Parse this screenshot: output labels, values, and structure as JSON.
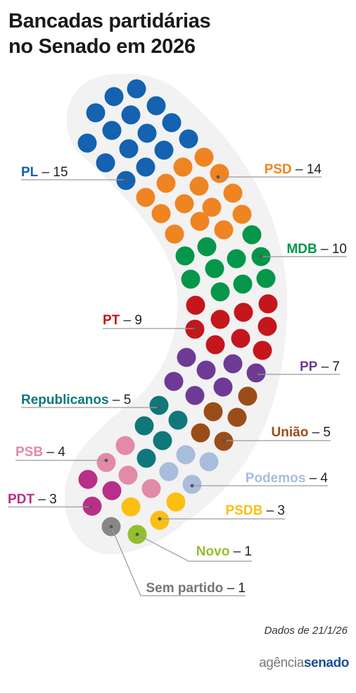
{
  "title": {
    "line1": "Bancadas partidárias",
    "line2": "no Senado em 2026"
  },
  "source": "Dados de 21/1/26",
  "logo": {
    "part1": "agência",
    "part2": "senado"
  },
  "chart_data": {
    "type": "parliament",
    "title": "Bancadas partidárias no Senado em 2026",
    "total_seats": 81,
    "parties": [
      {
        "name": "PL",
        "seats": 15,
        "color": "#1462b0"
      },
      {
        "name": "PSD",
        "seats": 14,
        "color": "#ef8422"
      },
      {
        "name": "MDB",
        "seats": 10,
        "color": "#05964a"
      },
      {
        "name": "PT",
        "seats": 9,
        "color": "#c4161c"
      },
      {
        "name": "PP",
        "seats": 7,
        "color": "#6f3a96"
      },
      {
        "name": "Republicanos",
        "seats": 5,
        "color": "#0e787b"
      },
      {
        "name": "União",
        "seats": 5,
        "color": "#9b4d19"
      },
      {
        "name": "PSB",
        "seats": 4,
        "color": "#e28aa8"
      },
      {
        "name": "Podemos",
        "seats": 4,
        "color": "#a8bddb"
      },
      {
        "name": "PDT",
        "seats": 3,
        "color": "#b82f8a"
      },
      {
        "name": "PSDB",
        "seats": 3,
        "color": "#fbbf11"
      },
      {
        "name": "Novo",
        "seats": 1,
        "color": "#93be2e"
      },
      {
        "name": "Sem partido",
        "seats": 1,
        "color": "#878787"
      }
    ],
    "labels": [
      {
        "party": "PL",
        "text": "PL",
        "sep": " – ",
        "count": "15"
      },
      {
        "party": "PSD",
        "text": "PSD",
        "sep": " – ",
        "count": "14"
      },
      {
        "party": "MDB",
        "text": "MDB",
        "sep": " – ",
        "count": "10"
      },
      {
        "party": "PT",
        "text": "PT",
        "sep": " – ",
        "count": "9"
      },
      {
        "party": "PP",
        "text": "PP",
        "sep": " – ",
        "count": "7"
      },
      {
        "party": "Republicanos",
        "text": "Republicanos",
        "sep": " – ",
        "count": "5"
      },
      {
        "party": "União",
        "text": "União",
        "sep": " – ",
        "count": "5"
      },
      {
        "party": "PSB",
        "text": "PSB",
        "sep": " – ",
        "count": "4"
      },
      {
        "party": "Podemos",
        "text": "Podemos",
        "sep": " – ",
        "count": "4"
      },
      {
        "party": "PDT",
        "text": "PDT",
        "sep": " – ",
        "count": "3"
      },
      {
        "party": "PSDB",
        "text": "PSDB",
        "sep": " – ",
        "count": "3"
      },
      {
        "party": "Novo",
        "text": "Novo",
        "sep": " – ",
        "count": "1"
      },
      {
        "party": "Sem partido",
        "text": "Sem partido",
        "sep": " – ",
        "count": "1"
      }
    ]
  }
}
